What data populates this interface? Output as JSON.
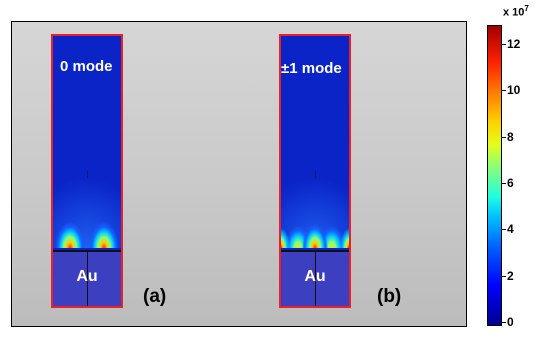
{
  "panels": [
    {
      "mode_label": "0 mode",
      "material_label": "Au",
      "tag": "(a)"
    },
    {
      "mode_label": "±1 mode",
      "material_label": "Au",
      "tag": "(b)"
    }
  ],
  "colorbar": {
    "scale_base": "x 10",
    "scale_exponent": "7",
    "ticks": [
      "0",
      "2",
      "4",
      "6",
      "8",
      "10",
      "12"
    ],
    "colors": [
      "#00008f",
      "#0000ff",
      "#00c8ff",
      "#80ff80",
      "#ffd000",
      "#ff2000",
      "#a00000"
    ]
  }
}
